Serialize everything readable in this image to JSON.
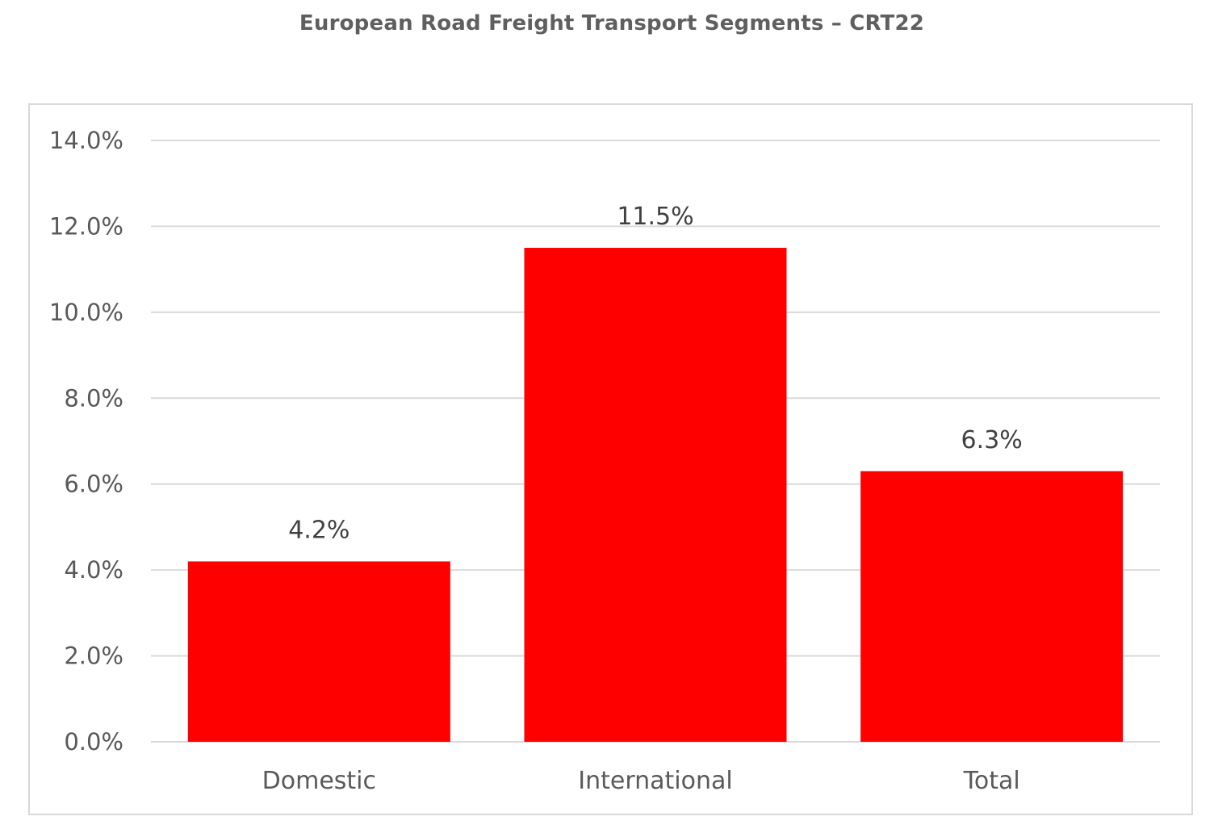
{
  "title": "European Road Freight Transport Segments – CRT22",
  "chart_data": {
    "type": "bar",
    "title": "European Road Freight Transport Segments – CRT22",
    "categories": [
      "Domestic",
      "International",
      "Total"
    ],
    "values": [
      4.2,
      11.5,
      6.3
    ],
    "value_labels": [
      "4.2%",
      "11.5%",
      "6.3%"
    ],
    "ylim": [
      0,
      14
    ],
    "yticks": [
      0,
      2,
      4,
      6,
      8,
      10,
      12,
      14
    ],
    "ytick_labels": [
      "0.0%",
      "2.0%",
      "4.0%",
      "6.0%",
      "8.0%",
      "10.0%",
      "12.0%",
      "14.0%"
    ],
    "xlabel": "",
    "ylabel": "",
    "grid": true,
    "legend": "none",
    "colors": {
      "bar": "#ff0000",
      "grid": "#d9d9d9",
      "text": "#595959",
      "title": "#5f5f5f"
    }
  }
}
